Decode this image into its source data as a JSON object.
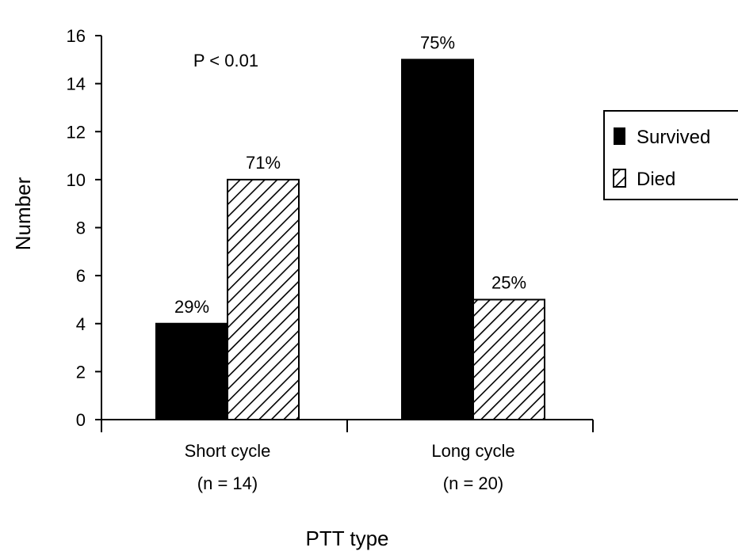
{
  "chart_data": {
    "type": "bar",
    "xlabel": "PTT type",
    "ylabel": "Number",
    "ylim": [
      0,
      16
    ],
    "yticks": [
      "0",
      "2",
      "4",
      "6",
      "8",
      "10",
      "12",
      "14",
      "16"
    ],
    "categories": [
      {
        "name": "Short cycle",
        "n_label": "(n = 14)"
      },
      {
        "name": "Long cycle",
        "n_label": "(n = 20)"
      }
    ],
    "series": [
      {
        "name": "Survived",
        "fill": "solid",
        "values": [
          4,
          15
        ],
        "labels": [
          "29%",
          "75%"
        ]
      },
      {
        "name": "Died",
        "fill": "hatched",
        "values": [
          10,
          5
        ],
        "labels": [
          "71%",
          "25%"
        ]
      }
    ],
    "annotation": "P < 0.01",
    "legend_position": "right",
    "grid": false
  },
  "colors": {
    "bar": "#000000",
    "background": "#ffffff"
  }
}
